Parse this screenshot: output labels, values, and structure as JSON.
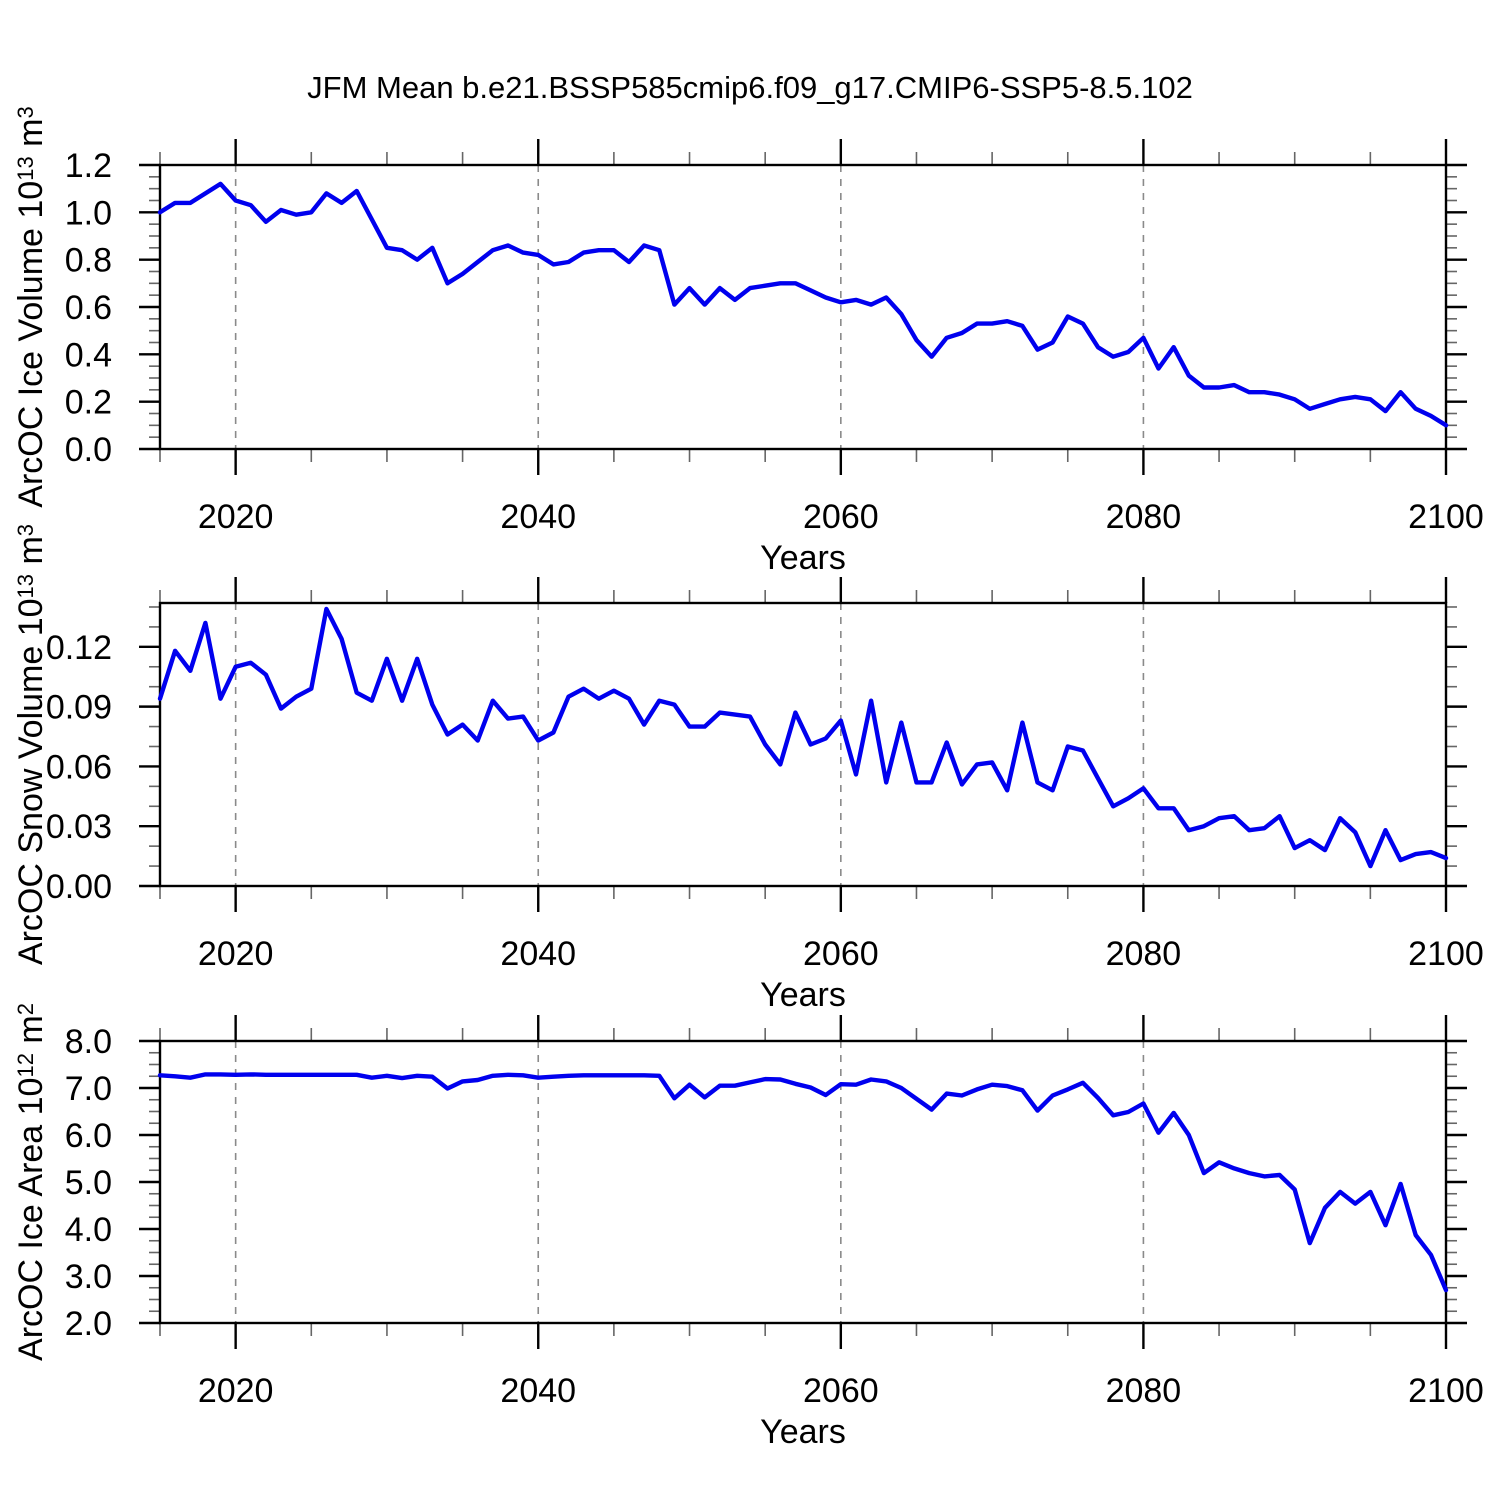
{
  "page_title": "JFM Mean b.e21.BSSP585cmip6.f09_g17.CMIP6-SSP5-8.5.102",
  "colors": {
    "line": "#0000ee",
    "axis": "#000000",
    "grid": "#8a8a8a",
    "minor_tick": "#666666",
    "background": "#ffffff"
  },
  "x_axis": {
    "label": "Years",
    "range": [
      2015,
      2100
    ],
    "major_ticks": [
      2020,
      2040,
      2060,
      2080,
      2100
    ],
    "major_labels": [
      "2020",
      "2040",
      "2060",
      "2080",
      "2100"
    ],
    "minor_step": 5,
    "gridline_years": [
      2020,
      2040,
      2060,
      2080
    ]
  },
  "years": [
    2015,
    2016,
    2017,
    2018,
    2019,
    2020,
    2021,
    2022,
    2023,
    2024,
    2025,
    2026,
    2027,
    2028,
    2029,
    2030,
    2031,
    2032,
    2033,
    2034,
    2035,
    2036,
    2037,
    2038,
    2039,
    2040,
    2041,
    2042,
    2043,
    2044,
    2045,
    2046,
    2047,
    2048,
    2049,
    2050,
    2051,
    2052,
    2053,
    2054,
    2055,
    2056,
    2057,
    2058,
    2059,
    2060,
    2061,
    2062,
    2063,
    2064,
    2065,
    2066,
    2067,
    2068,
    2069,
    2070,
    2071,
    2072,
    2073,
    2074,
    2075,
    2076,
    2077,
    2078,
    2079,
    2080,
    2081,
    2082,
    2083,
    2084,
    2085,
    2086,
    2087,
    2088,
    2089,
    2090,
    2091,
    2092,
    2093,
    2094,
    2095,
    2096,
    2097,
    2098,
    2099,
    2100
  ],
  "chart_data": [
    {
      "id": "ice-volume",
      "type": "line",
      "title": "JFM Mean b.e21.BSSP585cmip6.f09_g17.CMIP6-SSP5-8.5.102",
      "xlabel": "Years",
      "ylabel": "ArcOC Ice Volume 10^13 m^3",
      "ylabel_parts": [
        [
          "ArcOC Ice Volume 10",
          false
        ],
        [
          "13",
          true
        ],
        [
          " m",
          false
        ],
        [
          "3",
          true
        ]
      ],
      "ylim": [
        0,
        1.2
      ],
      "ytick_values": [
        0.0,
        0.2,
        0.4,
        0.6,
        0.8,
        1.0,
        1.2
      ],
      "ytick_labels": [
        "0.0",
        "0.2",
        "0.4",
        "0.6",
        "0.8",
        "1.0",
        "1.2"
      ],
      "yminor_step": 0.05,
      "grid": "dashed-vertical",
      "legend": "none",
      "values": [
        1.0,
        1.04,
        1.04,
        1.08,
        1.12,
        1.05,
        1.03,
        0.96,
        1.01,
        0.99,
        1.0,
        1.08,
        1.04,
        1.09,
        0.97,
        0.85,
        0.84,
        0.8,
        0.85,
        0.7,
        0.74,
        0.79,
        0.84,
        0.86,
        0.83,
        0.82,
        0.78,
        0.79,
        0.83,
        0.84,
        0.84,
        0.79,
        0.86,
        0.84,
        0.61,
        0.68,
        0.61,
        0.68,
        0.63,
        0.68,
        0.69,
        0.7,
        0.7,
        0.67,
        0.64,
        0.62,
        0.63,
        0.61,
        0.64,
        0.57,
        0.46,
        0.39,
        0.47,
        0.49,
        0.53,
        0.53,
        0.54,
        0.52,
        0.42,
        0.45,
        0.56,
        0.53,
        0.43,
        0.39,
        0.41,
        0.47,
        0.34,
        0.43,
        0.31,
        0.26,
        0.26,
        0.27,
        0.24,
        0.24,
        0.23,
        0.21,
        0.17,
        0.19,
        0.21,
        0.22,
        0.21,
        0.16,
        0.24,
        0.17,
        0.14,
        0.1
      ]
    },
    {
      "id": "snow-volume",
      "type": "line",
      "xlabel": "Years",
      "ylabel": "ArcOC Snow Volume 10^13 m^3",
      "ylabel_parts": [
        [
          "ArcOC Snow Volume 10",
          false
        ],
        [
          "13",
          true
        ],
        [
          " m",
          false
        ],
        [
          "3",
          true
        ]
      ],
      "ylim": [
        0,
        0.142
      ],
      "ytick_values": [
        0.0,
        0.03,
        0.06,
        0.09,
        0.12
      ],
      "ytick_labels": [
        "0.00",
        "0.03",
        "0.06",
        "0.09",
        "0.12"
      ],
      "yminor_step": 0.01,
      "grid": "dashed-vertical",
      "legend": "none",
      "values": [
        0.094,
        0.118,
        0.108,
        0.132,
        0.094,
        0.11,
        0.112,
        0.106,
        0.089,
        0.095,
        0.099,
        0.139,
        0.124,
        0.097,
        0.093,
        0.114,
        0.093,
        0.114,
        0.091,
        0.076,
        0.081,
        0.073,
        0.093,
        0.084,
        0.085,
        0.073,
        0.077,
        0.095,
        0.099,
        0.094,
        0.098,
        0.094,
        0.081,
        0.093,
        0.091,
        0.08,
        0.08,
        0.087,
        0.086,
        0.085,
        0.071,
        0.061,
        0.087,
        0.071,
        0.074,
        0.083,
        0.056,
        0.093,
        0.052,
        0.082,
        0.052,
        0.052,
        0.072,
        0.051,
        0.061,
        0.062,
        0.048,
        0.082,
        0.052,
        0.048,
        0.07,
        0.068,
        0.054,
        0.04,
        0.044,
        0.049,
        0.039,
        0.039,
        0.028,
        0.03,
        0.034,
        0.035,
        0.028,
        0.029,
        0.035,
        0.019,
        0.023,
        0.018,
        0.034,
        0.027,
        0.01,
        0.028,
        0.013,
        0.016,
        0.017,
        0.014
      ]
    },
    {
      "id": "ice-area",
      "type": "line",
      "xlabel": "Years",
      "ylabel": "ArcOC Ice Area 10^12 m^2",
      "ylabel_parts": [
        [
          "ArcOC Ice Area 10",
          false
        ],
        [
          "12",
          true
        ],
        [
          " m",
          false
        ],
        [
          "2",
          true
        ]
      ],
      "ylim": [
        2.0,
        8.0
      ],
      "ytick_values": [
        2.0,
        3.0,
        4.0,
        5.0,
        6.0,
        7.0,
        8.0
      ],
      "ytick_labels": [
        "2.0",
        "3.0",
        "4.0",
        "5.0",
        "6.0",
        "7.0",
        "8.0"
      ],
      "yminor_step": 0.25,
      "grid": "dashed-vertical",
      "legend": "none",
      "values": [
        7.27,
        7.25,
        7.22,
        7.29,
        7.29,
        7.28,
        7.29,
        7.28,
        7.28,
        7.28,
        7.28,
        7.28,
        7.28,
        7.28,
        7.22,
        7.26,
        7.21,
        7.26,
        7.24,
        6.99,
        7.14,
        7.17,
        7.26,
        7.28,
        7.27,
        7.22,
        7.24,
        7.26,
        7.27,
        7.27,
        7.27,
        7.27,
        7.27,
        7.26,
        6.78,
        7.07,
        6.8,
        7.05,
        7.05,
        7.12,
        7.19,
        7.18,
        7.09,
        7.01,
        6.85,
        7.08,
        7.07,
        7.18,
        7.14,
        7.0,
        6.77,
        6.54,
        6.88,
        6.84,
        6.97,
        7.07,
        7.04,
        6.95,
        6.52,
        6.84,
        6.97,
        7.11,
        6.79,
        6.42,
        6.49,
        6.67,
        6.05,
        6.47,
        6.0,
        5.19,
        5.42,
        5.29,
        5.19,
        5.12,
        5.15,
        4.84,
        3.7,
        4.45,
        4.79,
        4.54,
        4.79,
        4.08,
        4.96,
        3.87,
        3.45,
        2.7
      ]
    }
  ]
}
